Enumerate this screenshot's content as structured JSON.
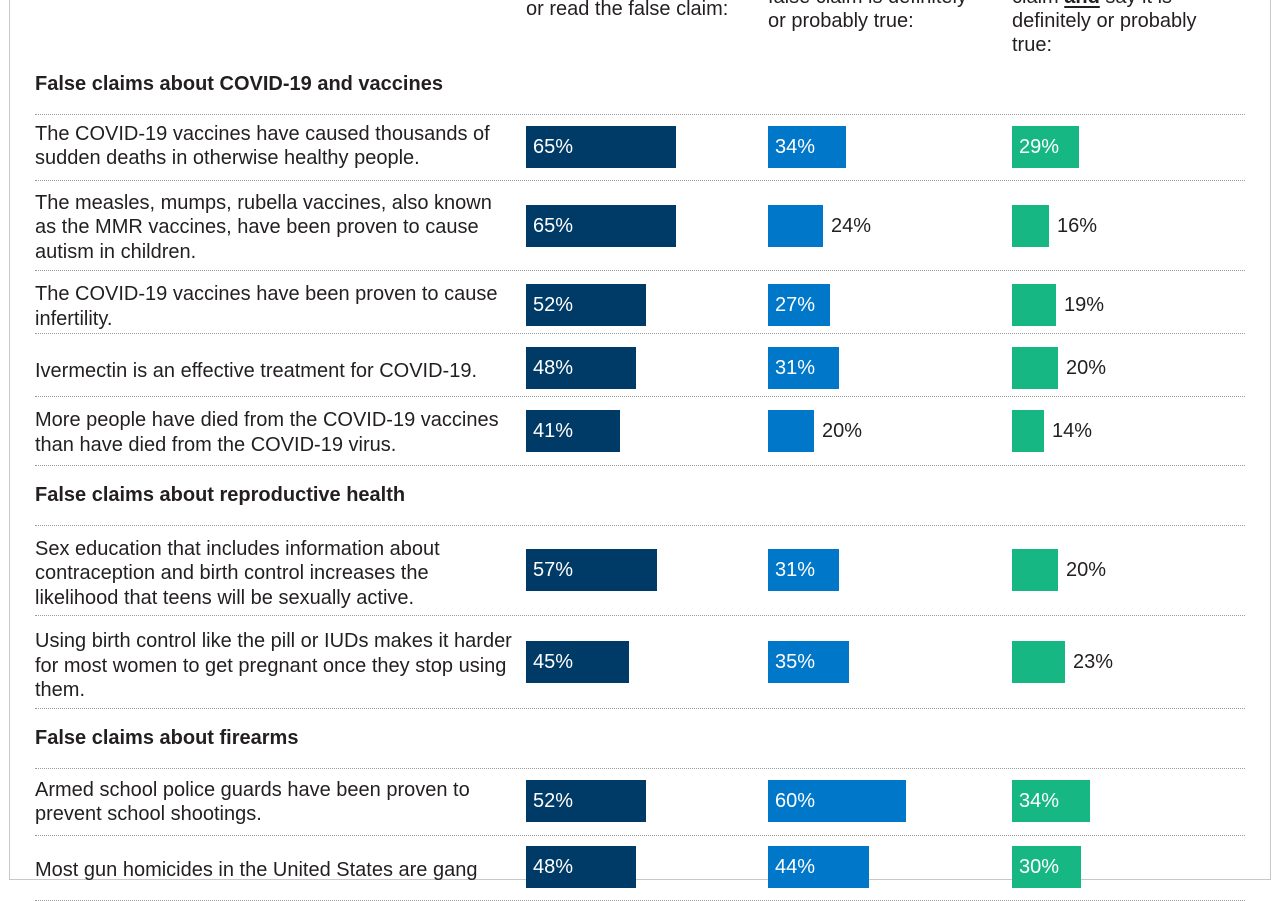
{
  "columns": [
    {
      "header_lines": [
        "or read the false claim:"
      ],
      "color": "#003a66"
    },
    {
      "header_lines": [
        "false claim is definitely",
        "or probably true:"
      ],
      "color": "#0077c8"
    },
    {
      "header_lines": [
        "claim ",
        "and",
        " say it is",
        "definitely or probably",
        "true:"
      ],
      "color": "#17b784"
    }
  ],
  "headers": {
    "col1": "or read the false claim:",
    "col2_line1": "false claim is definitely",
    "col2_line2": "or probably true:",
    "col3_line1_pre": "claim ",
    "col3_line1_em": "and",
    "col3_line1_post": " say it is",
    "col3_line2": "definitely or probably",
    "col3_line3": "true:"
  },
  "chart_data": {
    "type": "bar",
    "orientation": "horizontal",
    "series": [
      {
        "name": ""
      },
      {
        "name": ""
      },
      {
        "name": ""
      }
    ],
    "groups": [
      {
        "title": "False claims about COVID-19 and vaccines",
        "rows": [
          {
            "claim": "The COVID-19 vaccines have caused thousands of sudden deaths in otherwise healthy people.",
            "values": [
              65,
              34,
              29
            ]
          },
          {
            "claim": "The measles, mumps, rubella vaccines, also known as the MMR vaccines, have been proven to cause autism in children.",
            "values": [
              65,
              24,
              16
            ]
          },
          {
            "claim": "The COVID-19 vaccines have been proven to cause infertility.",
            "values": [
              52,
              27,
              19
            ]
          },
          {
            "claim": "Ivermectin is an effective treatment for COVID-19.",
            "values": [
              48,
              31,
              20
            ]
          },
          {
            "claim": "More people have died from the COVID-19 vaccines than have died from the COVID-19 virus.",
            "values": [
              41,
              20,
              14
            ]
          }
        ]
      },
      {
        "title": "False claims about reproductive health",
        "rows": [
          {
            "claim": "Sex education that includes information about contraception and birth control increases the likelihood that teens will be sexually active.",
            "values": [
              57,
              31,
              20
            ]
          },
          {
            "claim": "Using birth control like the pill or IUDs makes it harder for most women to get pregnant once they stop using them.",
            "values": [
              45,
              35,
              23
            ]
          }
        ]
      },
      {
        "title": "False claims about firearms",
        "rows": [
          {
            "claim": "Armed school police guards have been proven to prevent school shootings.",
            "values": [
              52,
              60,
              34
            ]
          },
          {
            "claim": "Most gun homicides in the United States are gang",
            "values": [
              48,
              44,
              30
            ]
          }
        ]
      }
    ],
    "value_suffix": "%",
    "xlim": [
      0,
      100
    ]
  }
}
